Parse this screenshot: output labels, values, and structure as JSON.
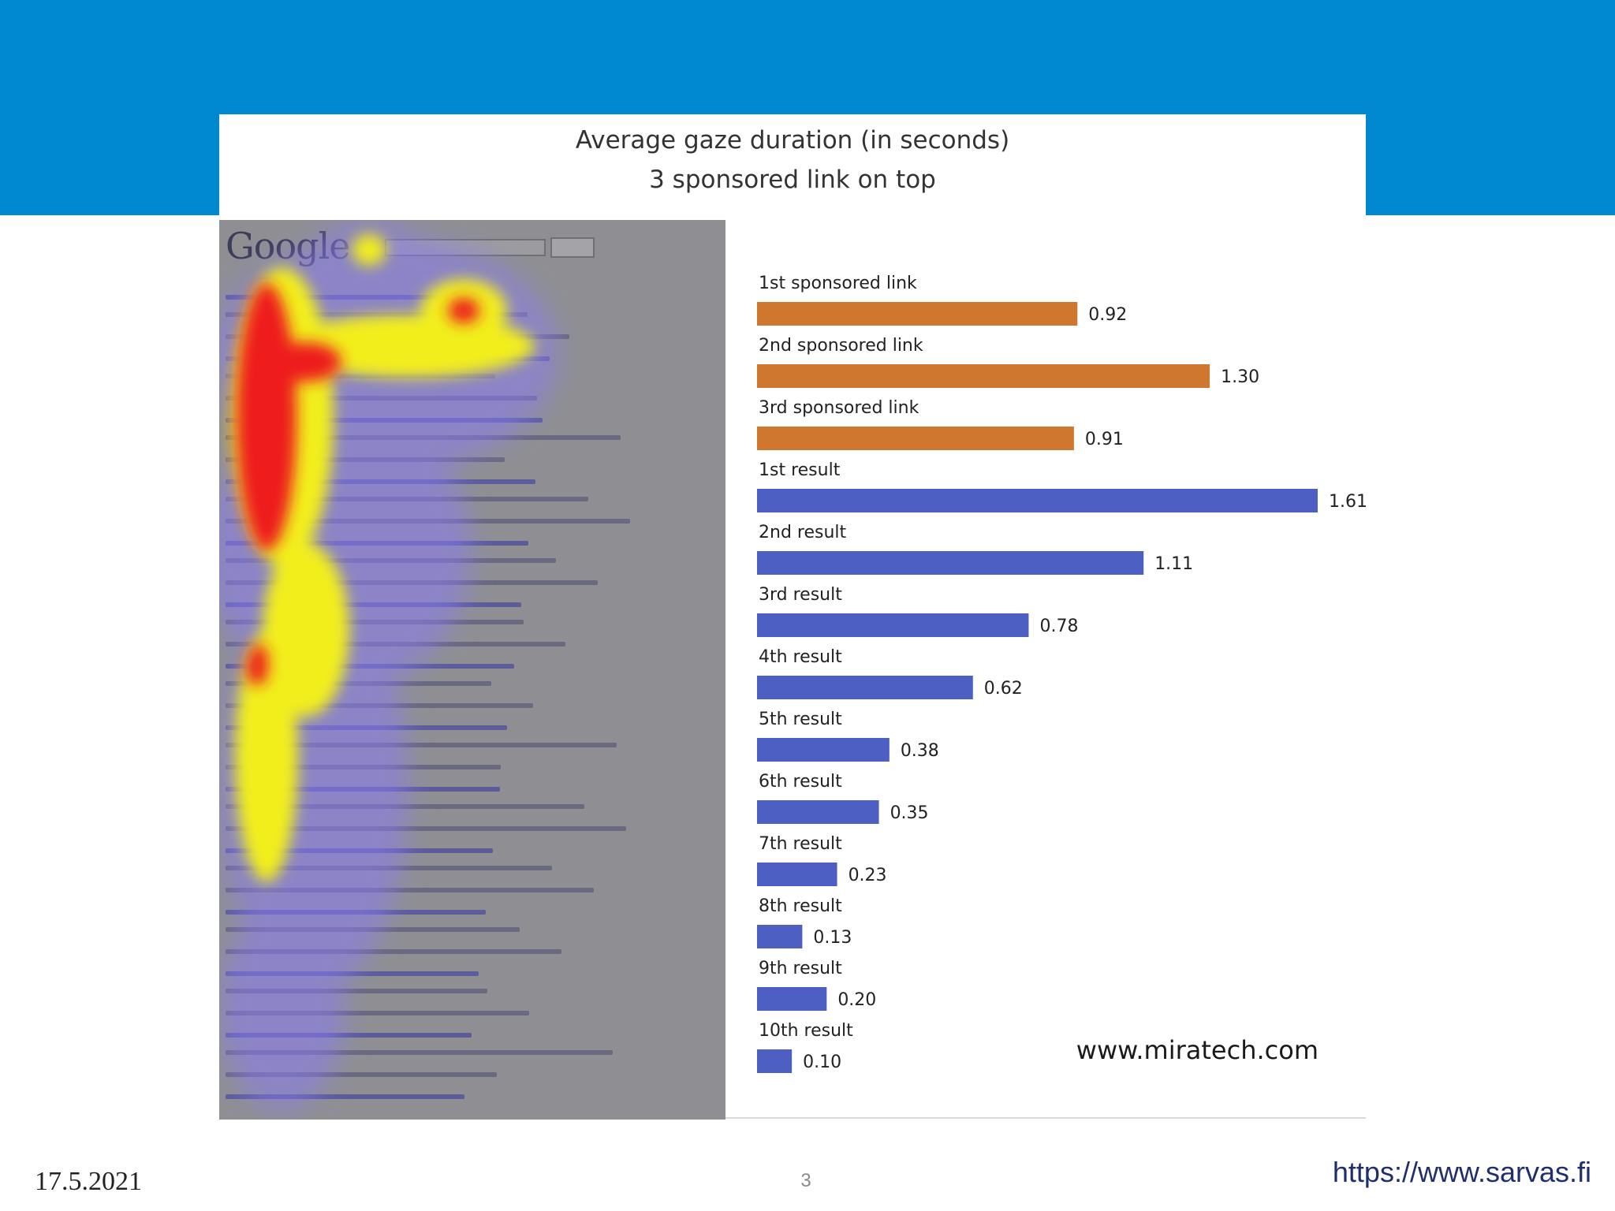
{
  "slide": {
    "date": "17.5.2021",
    "page_number": "3",
    "url": "https://www.sarvas.fi",
    "banner_color": "#0088cf"
  },
  "figure": {
    "title_line1": "Average gaze duration (in seconds)",
    "title_line2": "3 sponsored link on top",
    "credit": "www.miratech.com",
    "screenshot_logo": "Google"
  },
  "chart_data": {
    "type": "bar",
    "orientation": "horizontal",
    "title": "Average gaze duration (in seconds)",
    "subtitle": "3 sponsored link on top",
    "categories": [
      "1st sponsored link",
      "2nd sponsored link",
      "3rd sponsored link",
      "1st result",
      "2nd result",
      "3rd result",
      "4th result",
      "5th result",
      "6th result",
      "7th result",
      "8th result",
      "9th result",
      "10th result"
    ],
    "values": [
      0.92,
      1.3,
      0.91,
      1.61,
      1.11,
      0.78,
      0.62,
      0.38,
      0.35,
      0.23,
      0.13,
      0.2,
      0.1
    ],
    "value_labels": [
      "0.92",
      "1.30",
      "0.91",
      "1.61",
      "1.11",
      "0.78",
      "0.62",
      "0.38",
      "0.35",
      "0.23",
      "0.13",
      "0.20",
      "0.10"
    ],
    "groups": [
      "sponsored",
      "sponsored",
      "sponsored",
      "organic",
      "organic",
      "organic",
      "organic",
      "organic",
      "organic",
      "organic",
      "organic",
      "organic",
      "organic"
    ],
    "colors": {
      "sponsored": "#cf772e",
      "organic": "#4e5fc4"
    },
    "xlim": [
      0,
      1.61
    ],
    "grid": false,
    "legend": "none"
  }
}
